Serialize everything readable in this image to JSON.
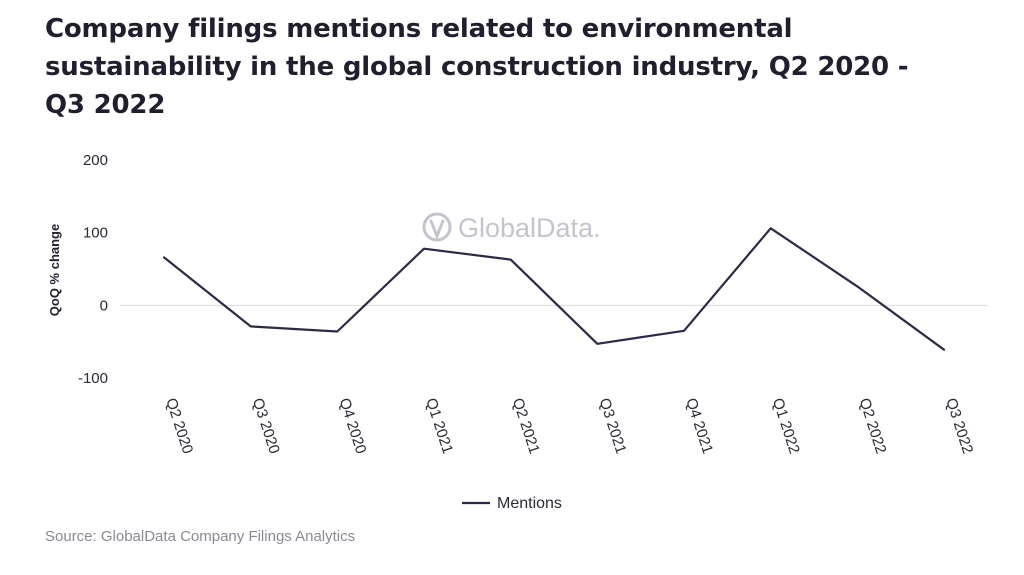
{
  "title": "Company filings mentions related to environmental sustainability in the global construction industry, Q2 2020 -Q3 2022",
  "source": "Source: GlobalData Company Filings Analytics",
  "watermark": "GlobalData.",
  "colors": {
    "series": "#2d2a45",
    "zero_line": "#d9d9d9",
    "watermark": "#c4c4ce"
  },
  "chart_data": {
    "type": "line",
    "categories": [
      "Q2 2020",
      "Q3 2020",
      "Q4 2020",
      "Q1 2021",
      "Q2 2021",
      "Q3 2021",
      "Q4 2021",
      "Q1 2022",
      "Q2 2022",
      "Q3 2022"
    ],
    "series": [
      {
        "name": "Mentions",
        "values": [
          66,
          -29,
          -36,
          78,
          63,
          -53,
          -35,
          106,
          26,
          -61
        ]
      }
    ],
    "xlabel": "",
    "ylabel": "QoQ % change",
    "ylim": [
      -100,
      200
    ],
    "yticks": [
      200,
      100,
      0,
      -100
    ],
    "grid": false,
    "legend": "bottom"
  }
}
